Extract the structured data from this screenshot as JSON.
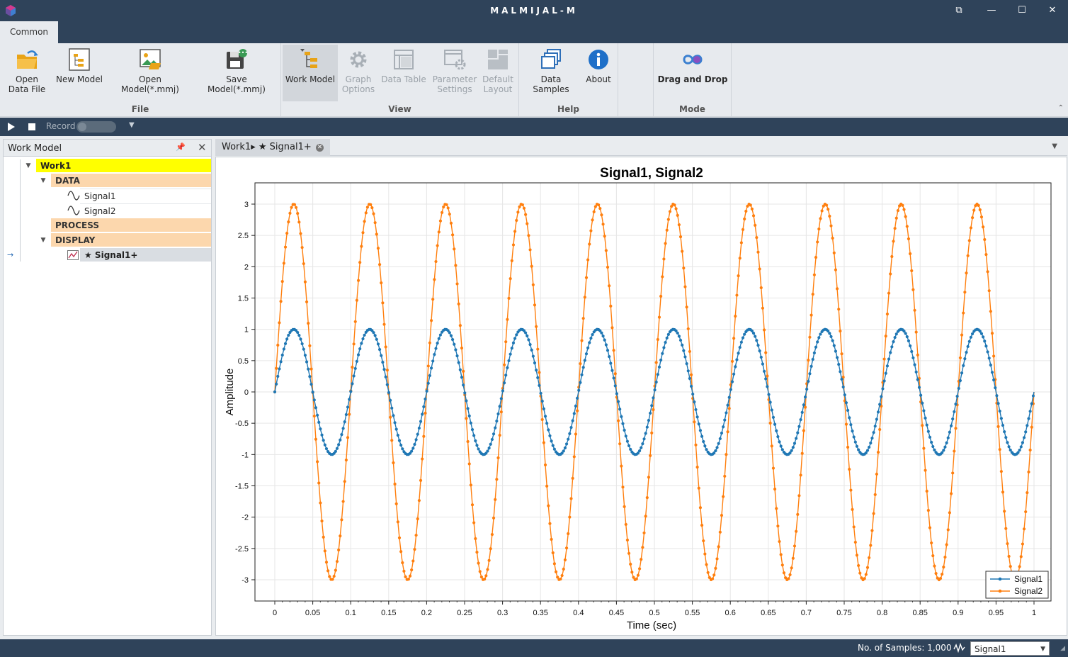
{
  "app": {
    "title": "MALMIJAL-M"
  },
  "ribbon": {
    "tab": "Common",
    "groups": {
      "file": {
        "label": "File",
        "open_data_file": "Open Data File",
        "new_model": "New Model",
        "open_model": "Open Model(*.mmj)",
        "save_model": "Save Model(*.mmj)"
      },
      "view": {
        "label": "View",
        "work_model": "Work Model",
        "graph_options": "Graph Options",
        "data_table": "Data Table",
        "parameter_settings": "Parameter Settings",
        "default_layout": "Default Layout"
      },
      "help": {
        "label": "Help",
        "data_samples": "Data Samples",
        "about": "About"
      },
      "mode": {
        "label": "Mode",
        "drag_and_drop": "Drag and Drop"
      }
    }
  },
  "record_bar": {
    "record_label": "Record"
  },
  "work_model_panel": {
    "title": "Work Model",
    "tree": {
      "root": "Work1",
      "data": "DATA",
      "signals": [
        "Signal1",
        "Signal2"
      ],
      "process": "PROCESS",
      "display": "DISPLAY",
      "display_item": "★ Signal1+"
    }
  },
  "document_tab": {
    "label": "Work1▸ ★ Signal1+"
  },
  "colors": {
    "signal1": "#1f77b4",
    "signal2": "#ff7f0e",
    "root_highlight": "#ffff00",
    "group_bg": "#fcd7ad",
    "dark": "#2f435a"
  },
  "chart_data": {
    "type": "line",
    "title": "Signal1, Signal2",
    "xlabel": "Time (sec)",
    "ylabel": "Amplitude",
    "xlim": [
      0,
      1
    ],
    "ylim": [
      -3,
      3
    ],
    "xticks": [
      0,
      0.05,
      0.1,
      0.15,
      0.2,
      0.25,
      0.3,
      0.35,
      0.4,
      0.45,
      0.5,
      0.55,
      0.6,
      0.65,
      0.7,
      0.75,
      0.8,
      0.85,
      0.9,
      0.95,
      1
    ],
    "xtick_labels": [
      "0",
      "0.05",
      "0.1",
      "0.15",
      "0.2",
      "0.25",
      "0.3",
      "0.35",
      "0.4",
      "0.45",
      "0.5",
      "0.55",
      "0.6",
      "0.65",
      "0.7",
      "0.75",
      "0.8",
      "0.85",
      "0.9",
      "0.95",
      "1"
    ],
    "yticks": [
      3,
      2.5,
      2,
      1.5,
      1,
      0.5,
      0,
      -0.5,
      -1,
      -1.5,
      -2,
      -2.5,
      -3
    ],
    "ytick_labels": [
      "3",
      "2.5",
      "2",
      "1.5",
      "1",
      "0.5",
      "0",
      "-0.5",
      "-1",
      "-1.5",
      "-2",
      "-2.5",
      "-3"
    ],
    "grid": true,
    "legend_position": "bottom-right",
    "series": [
      {
        "name": "Signal1",
        "amplitude": 1,
        "frequency_hz": 10,
        "samples": 1000,
        "color": "#1f77b4",
        "marker": "circle"
      },
      {
        "name": "Signal2",
        "amplitude": 3,
        "frequency_hz": 10,
        "samples": 1000,
        "color": "#ff7f0e",
        "marker": "circle"
      }
    ]
  },
  "status_bar": {
    "samples_text": "No. of Samples: 1,000",
    "selected_signal": "Signal1"
  }
}
